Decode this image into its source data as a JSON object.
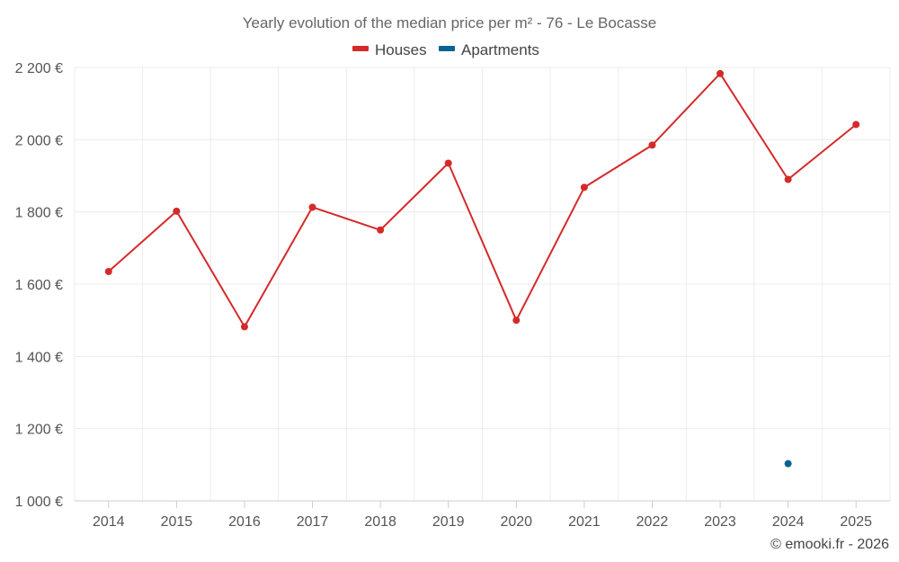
{
  "chart_data": {
    "type": "line",
    "title": "Yearly evolution of the median price per m² - 76 - Le Bocasse",
    "categories": [
      "2014",
      "2015",
      "2016",
      "2017",
      "2018",
      "2019",
      "2020",
      "2021",
      "2022",
      "2023",
      "2024",
      "2025"
    ],
    "series": [
      {
        "name": "Houses",
        "color": "#d42a2a",
        "values": [
          1635,
          1802,
          1482,
          1813,
          1750,
          1935,
          1500,
          1868,
          1985,
          2183,
          1890,
          2042
        ]
      },
      {
        "name": "Apartments",
        "color": "#0b6394",
        "values": [
          null,
          null,
          null,
          null,
          null,
          null,
          null,
          null,
          null,
          null,
          1103,
          null
        ]
      }
    ],
    "ylim": [
      1000,
      2200
    ],
    "yticks": [
      1000,
      1200,
      1400,
      1600,
      1800,
      2000,
      2200
    ],
    "ytick_labels": [
      "1 000 €",
      "1 200 €",
      "1 400 €",
      "1 600 €",
      "1 800 €",
      "2 000 €",
      "2 200 €"
    ],
    "xlabel": "",
    "ylabel": "",
    "grid": true,
    "legend": "top-center"
  },
  "credit": "© emooki.fr - 2026"
}
